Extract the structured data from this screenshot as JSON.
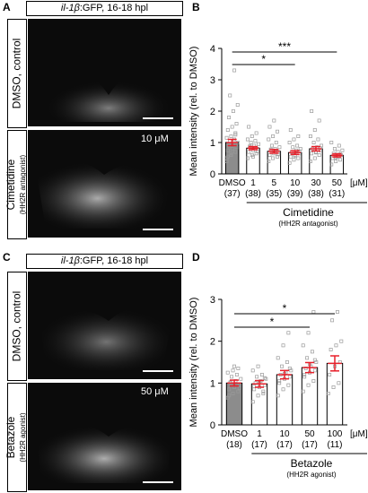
{
  "panel_labels": {
    "a": "A",
    "b": "B",
    "c": "C",
    "d": "D"
  },
  "image_titles": {
    "top": {
      "gene": "il-1β",
      "rest": ":GFP, 16-18 hpl"
    },
    "bottom": {
      "gene": "il-1β",
      "rest": ":GFP, 16-18 hpl"
    }
  },
  "image_row_labels": {
    "a_control": "DMSO, control",
    "a_drug": "Cimetidine",
    "a_drug_sub": "(HH2R antagonist)",
    "c_control": "DMSO, control",
    "c_drug": "Betazole",
    "c_drug_sub": "(HH2R agonist)"
  },
  "image_concentrations": {
    "a": "10 μM",
    "c": "50 μM"
  },
  "chart_data": [
    {
      "panel": "B",
      "type": "bar",
      "ylabel": "Mean intensity (rel. to DMSO)",
      "ylim": [
        0,
        4
      ],
      "yticks": [
        0,
        1,
        2,
        3,
        4
      ],
      "categories": [
        "DMSO",
        "1",
        "5",
        "10",
        "30",
        "50"
      ],
      "n_labels": [
        "(37)",
        "(38)",
        "(35)",
        "(39)",
        "(38)",
        "(31)"
      ],
      "unit_label": "[μM]",
      "values": [
        1.0,
        0.82,
        0.72,
        0.68,
        0.8,
        0.59
      ],
      "sem": [
        0.1,
        0.05,
        0.06,
        0.06,
        0.07,
        0.05
      ],
      "bar_colors": [
        "#8c8c8c",
        "#ffffff",
        "#ffffff",
        "#ffffff",
        "#ffffff",
        "#ffffff"
      ],
      "significance": [
        {
          "from": 0,
          "to": 3,
          "label": "*"
        },
        {
          "from": 0,
          "to": 5,
          "label": "***"
        }
      ],
      "group_label": "Cimetidine",
      "group_sublabel": "(HH2R antagonist)",
      "points": [
        [
          0.5,
          0.6,
          0.7,
          0.75,
          0.8,
          0.85,
          0.9,
          0.95,
          1.0,
          1.05,
          1.1,
          1.15,
          1.2,
          1.3,
          1.4,
          1.5,
          1.6,
          1.8,
          2.0,
          2.2,
          2.5,
          3.3,
          0.4,
          0.65,
          1.25,
          0.55
        ],
        [
          0.5,
          0.6,
          0.65,
          0.7,
          0.75,
          0.8,
          0.85,
          0.9,
          0.95,
          1.0,
          1.05,
          1.1,
          1.2,
          1.3,
          1.5,
          0.55,
          0.72,
          0.88
        ],
        [
          0.4,
          0.5,
          0.55,
          0.6,
          0.65,
          0.7,
          0.75,
          0.8,
          0.85,
          0.9,
          1.0,
          1.1,
          1.2,
          1.35,
          1.5,
          1.7,
          0.62,
          0.78
        ],
        [
          0.35,
          0.45,
          0.5,
          0.55,
          0.6,
          0.65,
          0.7,
          0.75,
          0.8,
          0.85,
          0.9,
          1.0,
          1.1,
          1.2,
          1.4,
          0.58,
          0.72
        ],
        [
          0.4,
          0.5,
          0.6,
          0.65,
          0.7,
          0.75,
          0.8,
          0.85,
          0.9,
          1.0,
          1.1,
          1.2,
          1.4,
          1.7,
          2.0,
          0.68,
          0.82
        ],
        [
          0.3,
          0.4,
          0.45,
          0.5,
          0.55,
          0.6,
          0.65,
          0.7,
          0.75,
          0.8,
          0.9,
          1.0,
          0.52,
          0.62
        ]
      ]
    },
    {
      "panel": "D",
      "type": "bar",
      "ylabel": "Mean intensity (rel. to DMSO)",
      "ylim": [
        0,
        3
      ],
      "yticks": [
        0,
        1,
        2,
        3
      ],
      "categories": [
        "DMSO",
        "1",
        "10",
        "50",
        "100"
      ],
      "n_labels": [
        "(18)",
        "(17)",
        "(17)",
        "(17)",
        "(11)"
      ],
      "unit_label": "[μM]",
      "values": [
        1.0,
        0.98,
        1.2,
        1.37,
        1.47
      ],
      "sem": [
        0.07,
        0.08,
        0.1,
        0.12,
        0.18
      ],
      "bar_colors": [
        "#8c8c8c",
        "#ffffff",
        "#ffffff",
        "#ffffff",
        "#ffffff"
      ],
      "significance": [
        {
          "from": 0,
          "to": 3,
          "label": "*"
        },
        {
          "from": 0,
          "to": 4,
          "label": "*"
        }
      ],
      "group_label": "Betazole",
      "group_sublabel": "(HH2R agonist)",
      "points": [
        [
          0.65,
          0.75,
          0.8,
          0.85,
          0.9,
          0.95,
          1.0,
          1.05,
          1.1,
          1.15,
          1.2,
          1.25,
          1.3,
          1.35,
          0.7,
          1.4,
          0.88,
          1.02
        ],
        [
          0.55,
          0.7,
          0.8,
          0.85,
          0.9,
          0.95,
          1.0,
          1.05,
          1.1,
          1.15,
          1.2,
          1.3,
          1.4,
          0.75,
          0.92,
          1.0,
          1.12
        ],
        [
          0.7,
          0.85,
          0.95,
          1.0,
          1.1,
          1.15,
          1.2,
          1.25,
          1.3,
          1.4,
          1.5,
          1.6,
          1.9,
          2.2,
          1.05,
          1.22,
          1.35
        ],
        [
          0.8,
          0.95,
          1.05,
          1.15,
          1.25,
          1.3,
          1.35,
          1.4,
          1.5,
          1.6,
          1.75,
          1.9,
          2.2,
          2.7,
          1.2,
          1.45,
          1.55
        ],
        [
          0.75,
          0.9,
          1.0,
          1.2,
          1.4,
          1.5,
          1.8,
          1.9,
          2.0,
          2.5,
          2.7
        ]
      ]
    }
  ]
}
